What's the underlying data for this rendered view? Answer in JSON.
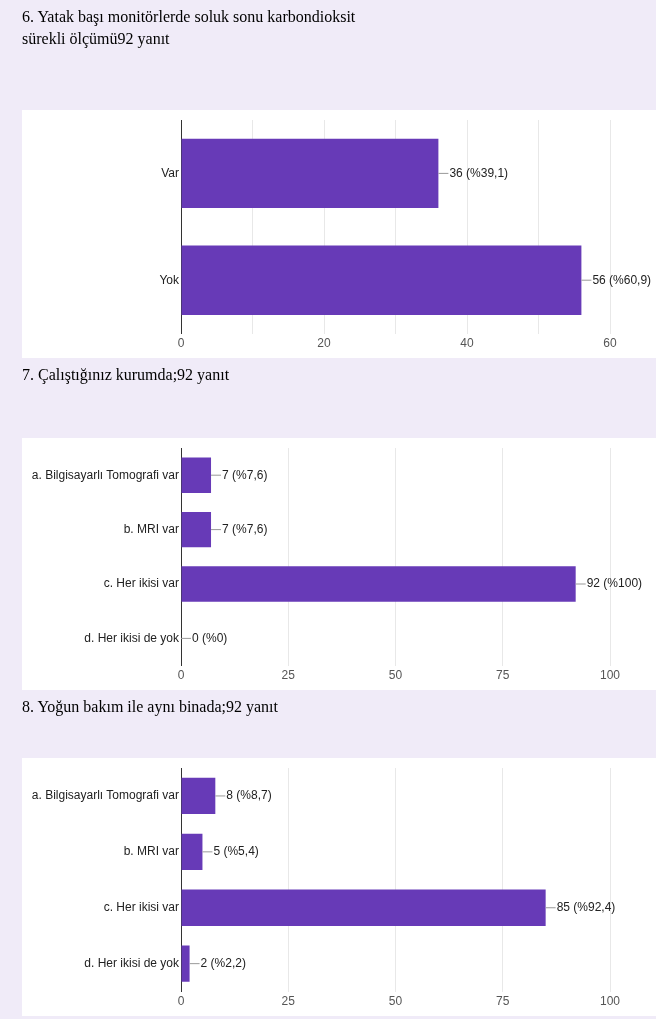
{
  "chart_data": [
    {
      "type": "bar",
      "orientation": "horizontal",
      "title": "6. Yatak başı monitörlerde soluk sonu karbondioksit sürekli ölçümü92 yanıt",
      "categories": [
        "Var",
        "Yok"
      ],
      "values": [
        36,
        56
      ],
      "value_labels": [
        "36 (%39,1)",
        "56 (%60,9)"
      ],
      "color": "#673ab7",
      "xlim": [
        0,
        60
      ],
      "xticks": [
        0,
        {
          "value": 10,
          "label": null
        },
        20,
        {
          "value": 30,
          "label": null
        },
        40,
        {
          "value": 50,
          "label": null
        },
        60
      ],
      "grid": "x"
    },
    {
      "type": "bar",
      "orientation": "horizontal",
      "title": "7. Çalıştığınız kurumda;92 yanıt",
      "categories": [
        "a. Bilgisayarlı Tomografi var",
        "b. MRI var",
        "c. Her ikisi var",
        "d. Her ikisi de yok"
      ],
      "values": [
        7,
        7,
        92,
        0
      ],
      "value_labels": [
        "7 (%7,6)",
        "7 (%7,6)",
        "92 (%100)",
        "0 (%0)"
      ],
      "color": "#673ab7",
      "xlim": [
        0,
        100
      ],
      "xticks": [
        0,
        25,
        50,
        75,
        100
      ],
      "grid": "x"
    },
    {
      "type": "bar",
      "orientation": "horizontal",
      "title": "8. Yoğun bakım ile aynı binada;92 yanıt",
      "categories": [
        "a. Bilgisayarlı Tomografi var",
        "b. MRI var",
        "c. Her ikisi var",
        "d. Her ikisi de yok"
      ],
      "values": [
        8,
        5,
        85,
        2
      ],
      "value_labels": [
        "8 (%8,7)",
        "5 (%5,4)",
        "85 (%92,4)",
        "2 (%2,2)"
      ],
      "color": "#673ab7",
      "xlim": [
        0,
        100
      ],
      "xticks": [
        0,
        25,
        50,
        75,
        100
      ],
      "grid": "x"
    }
  ]
}
